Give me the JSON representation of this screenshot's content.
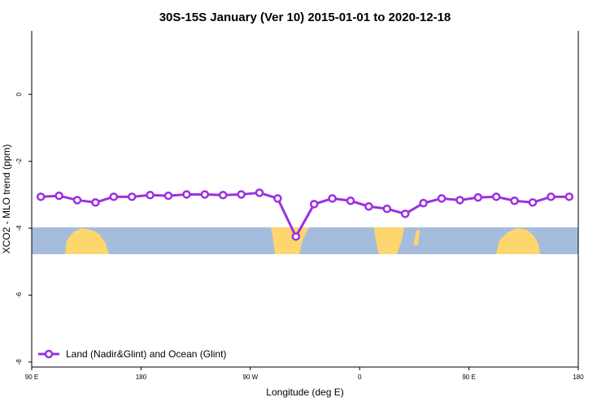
{
  "chart_data": {
    "type": "line",
    "title": "30S-15S January (Ver 10)   2015-01-01 to 2020-12-18",
    "x_label": "Longitude (deg E)",
    "y_label": "XCO2 - MLO trend (ppm)",
    "x": [
      97.5,
      112.5,
      127.5,
      142.5,
      157.5,
      172.5,
      187.5,
      202.5,
      217.5,
      232.5,
      247.5,
      262.5,
      277.5,
      292.5,
      307.5,
      322.5,
      337.5,
      352.5,
      367.5,
      382.5,
      397.5,
      412.5,
      427.5,
      442.5,
      457.5,
      472.5,
      487.5,
      502.5,
      517.5,
      532.5
    ],
    "series": [
      {
        "name": "Land (Nadir&Glint) and Ocean (Glint)",
        "color": "#9b30e0",
        "values": [
          -3.06,
          -3.03,
          -3.16,
          -3.23,
          -3.06,
          -3.06,
          -3.01,
          -3.03,
          -2.99,
          -2.99,
          -3.01,
          -2.99,
          -2.94,
          -3.11,
          -4.25,
          -3.28,
          -3.11,
          -3.18,
          -3.35,
          -3.42,
          -3.57,
          -3.25,
          -3.11,
          -3.16,
          -3.08,
          -3.06,
          -3.18,
          -3.23,
          -3.06,
          -3.06
        ]
      }
    ],
    "xlim": [
      90,
      540
    ],
    "xticks": [
      {
        "value": 90,
        "label": "90 E"
      },
      180,
      {
        "value": 270,
        "label": "90 W"
      },
      {
        "value": 360,
        "label": "0"
      },
      {
        "value": 450,
        "label": "90 E"
      },
      {
        "value": 540,
        "label": "180"
      }
    ],
    "ylim": [
      -8.15,
      1.9
    ],
    "yticks": [
      0,
      -2,
      -4,
      -6,
      -8
    ],
    "legend": "bottom-left"
  }
}
